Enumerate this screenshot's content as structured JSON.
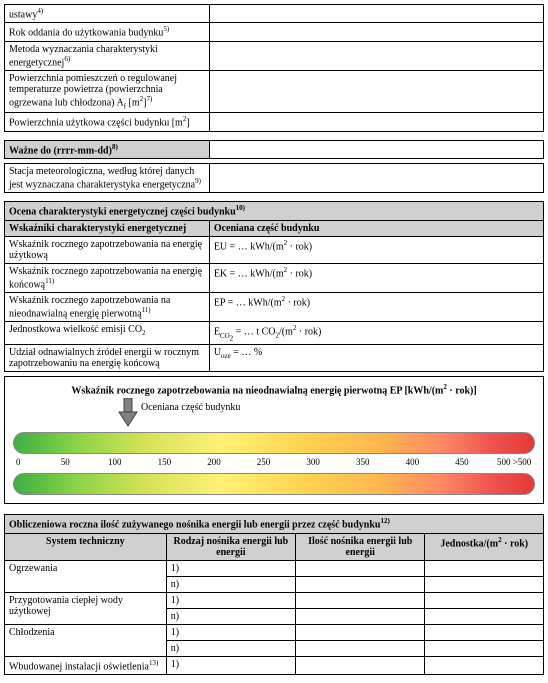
{
  "topRows": [
    {
      "label": "ustawy<sup>4)</sup>"
    },
    {
      "label": "Rok oddania do użytkowania budynku<sup>5)</sup>"
    },
    {
      "label": "Metoda wyznaczania charakterystyki energetycznej<sup>6)</sup>"
    },
    {
      "label": "Powierzchnia pomieszczeń o regulowanej temperaturze powietrza (powierzchnia ogrzewana lub chłodzona) A<sub>f</sub> [m<sup>2</sup>]<sup>7)</sup>"
    },
    {
      "label": "Powierzchnia użytkowa części budynku [m<sup>2</sup>]"
    }
  ],
  "validRow": {
    "label": "Ważne do (rrrr-mm-dd)<sup>8)</sup>"
  },
  "stationRow": {
    "label": "Stacja meteorologiczna, według której danych jest wyznaczana charakterystyka energetyczna<sup>9)</sup>"
  },
  "assessment": {
    "title": "Ocena charakterystyki energetycznej części budynku<sup>10)</sup>",
    "col1": "Wskaźniki charakterystyki energetycznej",
    "col2": "Oceniana część budynku",
    "rows": [
      {
        "label": "Wskaźnik rocznego zapotrzebowania na energię użytkową",
        "value": "EU = … kWh/(m<sup>2</sup> · rok)"
      },
      {
        "label": "Wskaźnik rocznego zapotrzebowania na energię końcową<sup>11)</sup>",
        "value": "EK = … kWh/(m<sup>2</sup> · rok)"
      },
      {
        "label": "Wskaźnik rocznego zapotrzebowania na nieodnawialną energię pierwotną<sup>11)</sup>",
        "value": "EP = … kWh/(m<sup>2</sup> · rok)"
      },
      {
        "label": "Jednostkowa wielkość emisji CO<sub>2</sub>",
        "value": "E<sub>CO<sub>2</sub></sub> = … t CO<sub>2</sub>/(m<sup>2</sup> · rok)"
      },
      {
        "label": "Udział odnawialnych źródeł energii w rocznym zapotrzebowaniu na energię końcową",
        "value": "U<sub>oze</sub> = … %"
      }
    ]
  },
  "scale": {
    "title": "Wskaźnik rocznego zapotrzebowania na nieodnawialną energię pierwotną EP [kWh/(m<sup>2</sup> · rok)]",
    "arrowLabel": "Oceniana część budynku",
    "ticks": [
      "0",
      "50",
      "100",
      "150",
      "200",
      "250",
      "300",
      "350",
      "400",
      "450",
      "500 >500"
    ],
    "tickPercents": [
      1,
      10,
      19.5,
      29,
      38.5,
      48,
      57.5,
      67,
      76.5,
      86,
      96
    ],
    "gradient": [
      "#3cb043",
      "#8bd346",
      "#d4e157",
      "#fff176",
      "#ffd54f",
      "#ffb74d",
      "#ff8a65",
      "#ef5350",
      "#e53935"
    ],
    "arrowColor": "#808080"
  },
  "calc": {
    "title": "Obliczeniowa roczna ilość zużywanego nośnika energii lub energii przez część budynku<sup>12)</sup>",
    "headers": {
      "system": "System techniczny",
      "rodzaj": "Rodzaj nośnika energii lub energii",
      "ilosc": "Ilość nośnika energii lub energii",
      "jednostka": "Jednostka/(m<sup>2</sup> · rok)"
    },
    "systems": [
      {
        "name": "Ogrzewania",
        "items": [
          "1)",
          "n)"
        ]
      },
      {
        "name": "Przygotowania ciepłej wody użytkowej",
        "items": [
          "1)",
          "n)"
        ]
      },
      {
        "name": "Chłodzenia",
        "items": [
          "1)",
          "n)"
        ]
      },
      {
        "name": "Wbudowanej instalacji oświetlenia<sup>13)</sup>",
        "items": [
          "1)"
        ]
      }
    ]
  }
}
